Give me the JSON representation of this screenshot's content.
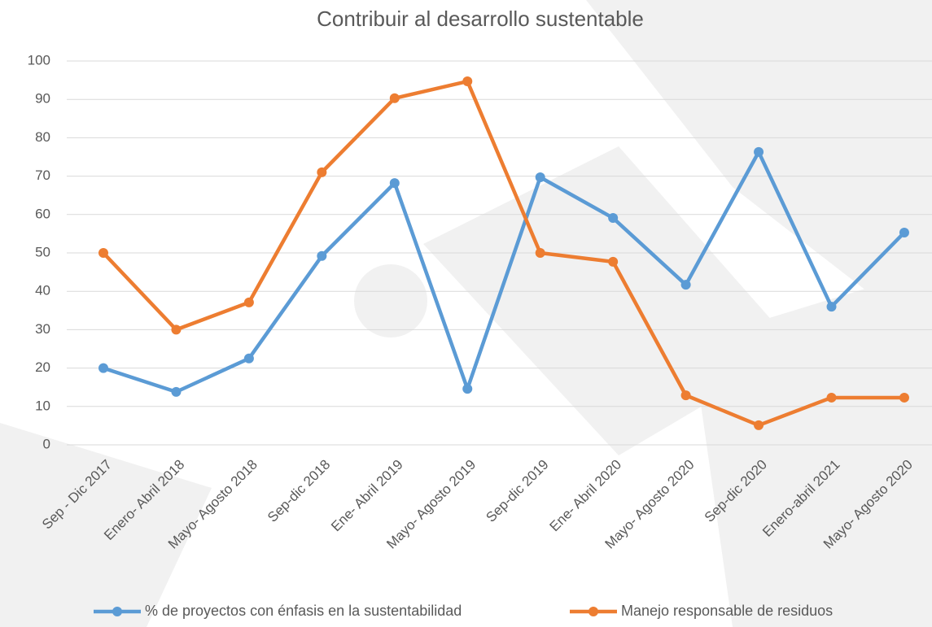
{
  "chart_data": {
    "type": "line",
    "title": "Contribuir al desarrollo sustentable",
    "categories": [
      "Sep - Dic 2017",
      "Enero- Abril 2018",
      "Mayo- Agosto 2018",
      "Sep-dic 2018",
      "Ene- Abril 2019",
      "Mayo- Agosto 2019",
      "Sep-dic 2019",
      "Ene- Abril 2020",
      "Mayo- Agosto 2020",
      "Sep-dic 2020",
      "Enero-abril 2021",
      "Mayo- Agosto 2020"
    ],
    "series": [
      {
        "name": "% de proyectos con énfasis en la sustentabilidad",
        "color": "#5b9bd5",
        "values": [
          20,
          13.8,
          22.5,
          49.2,
          68.2,
          14.6,
          69.7,
          59.1,
          41.7,
          76.3,
          36,
          55.3
        ]
      },
      {
        "name": "Manejo responsable de residuos",
        "color": "#ed7d31",
        "values": [
          50,
          30,
          37.1,
          71,
          90.3,
          94.7,
          50,
          47.7,
          12.9,
          5.1,
          12.3,
          12.3
        ]
      }
    ],
    "ylim": [
      0,
      100
    ],
    "yticks": [
      0,
      10,
      20,
      30,
      40,
      50,
      60,
      70,
      80,
      90,
      100
    ],
    "grid": true,
    "legend": "bottom"
  }
}
